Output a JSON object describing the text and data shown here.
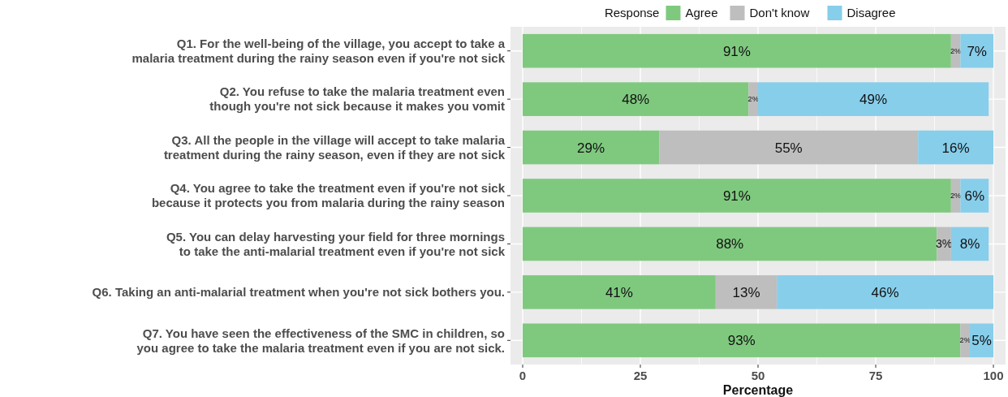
{
  "chart_data": {
    "type": "bar",
    "orientation": "horizontal",
    "stacked": true,
    "xlabel": "Percentage",
    "legend_title": "Response",
    "legend": "top",
    "grid": "x",
    "categories": [
      "Q1. For the well-being of the village, you accept to take a malaria treatment during the rainy season even if you're not sick",
      "Q2. You refuse to take the malaria treatment even though you're not sick because it makes you vomit",
      "Q3. All the people in the village will accept to take malaria treatment during the rainy season, even if they are not sick",
      "Q4. You agree to take the treatment even if you're not sick because it protects you from malaria during the rainy season",
      "Q5. You can delay harvesting your field for three mornings to take the anti-malarial treatment even if you're not sick",
      "Q6. Taking an anti-malarial treatment when you're not sick bothers you.",
      "Q7. You have seen the effectiveness of the SMC in children, so you agree to take the malaria treatment even if you are not sick."
    ],
    "series": [
      {
        "name": "Agree",
        "color": "#7fc97f",
        "values": [
          91,
          48,
          29,
          91,
          88,
          41,
          93
        ],
        "value_labels": [
          "91%",
          "48%",
          "29%",
          "91%",
          "88%",
          "41%",
          "93%"
        ]
      },
      {
        "name": "Don't know",
        "color": "#bebebe",
        "values": [
          2,
          2,
          55,
          2,
          3,
          13,
          2
        ],
        "value_labels": [
          "2%",
          "2%",
          "55%",
          "2%",
          "3%",
          "13%",
          "2%"
        ]
      },
      {
        "name": "Disagree",
        "color": "#87ceeb",
        "values": [
          7,
          49,
          16,
          6,
          8,
          46,
          5
        ],
        "value_labels": [
          "7%",
          "49%",
          "16%",
          "6%",
          "8%",
          "46%",
          "5%"
        ]
      }
    ],
    "xlim": [
      0,
      100
    ],
    "xticks": [
      0,
      25,
      50,
      75,
      100
    ]
  }
}
